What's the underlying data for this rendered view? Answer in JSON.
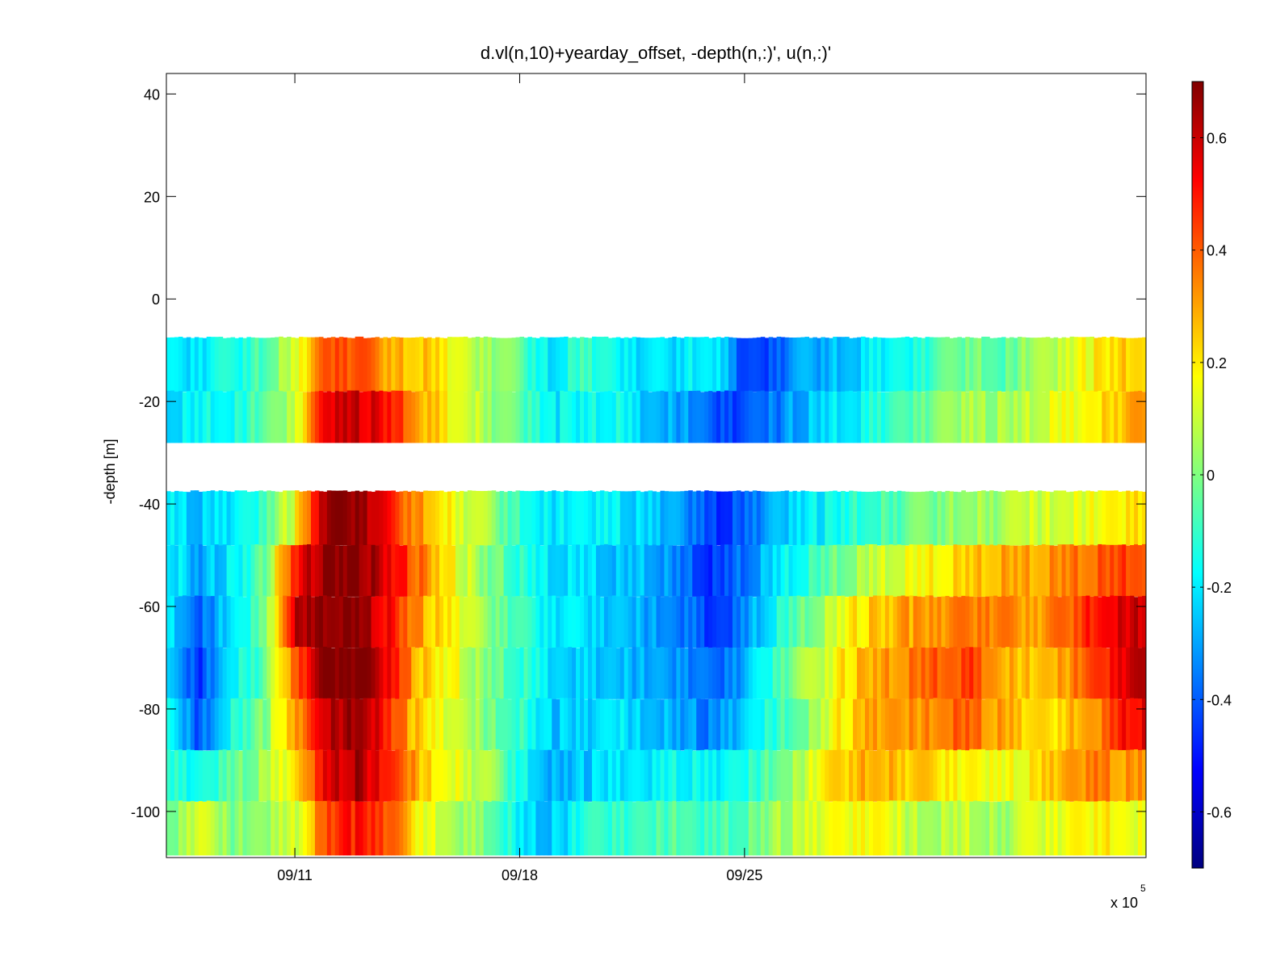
{
  "chart_data": {
    "type": "heatmap",
    "title": "d.vl(n,10)+yearday_offset, -depth(n,:)', u(n,:)'",
    "xlabel": "",
    "ylabel": "-depth [m]",
    "x_range_days": [
      0,
      30.5
    ],
    "x_tick_labels": [
      "09/11",
      "09/18",
      "09/25"
    ],
    "x_tick_days": [
      4,
      11,
      18
    ],
    "x_multiplier": "x 10",
    "x_multiplier_exponent": "5",
    "ylim": [
      -109,
      44
    ],
    "y_ticks": [
      40,
      20,
      0,
      -20,
      -40,
      -60,
      -80,
      -100
    ],
    "colormap": "jet",
    "clim": [
      -0.7,
      0.7
    ],
    "colorbar_ticks": [
      0.6,
      0.4,
      0.2,
      0,
      -0.2,
      -0.4,
      -0.6
    ],
    "grid": false,
    "depth_bins": [
      {
        "top": -7.5,
        "bottom": -18
      },
      {
        "top": -18,
        "bottom": -28
      },
      {
        "top": -37.5,
        "bottom": -48
      },
      {
        "top": -48,
        "bottom": -58
      },
      {
        "top": -58,
        "bottom": -68
      },
      {
        "top": -68,
        "bottom": -78
      },
      {
        "top": -78,
        "bottom": -88
      },
      {
        "top": -88,
        "bottom": -98
      },
      {
        "top": -98,
        "bottom": -108.5
      }
    ],
    "day_knots": [
      0,
      1,
      2,
      3,
      4,
      5,
      6,
      7,
      8,
      9,
      10,
      11,
      12,
      13,
      14,
      15,
      16,
      17,
      18,
      19,
      20,
      21,
      22,
      23,
      24,
      25,
      26,
      27,
      28,
      29,
      30,
      30.5
    ],
    "u_values_by_bin": [
      [
        -0.18,
        -0.2,
        -0.15,
        -0.05,
        0.1,
        0.45,
        0.4,
        0.3,
        0.25,
        0.15,
        0.05,
        -0.05,
        -0.2,
        -0.1,
        -0.15,
        -0.25,
        -0.2,
        -0.15,
        -0.45,
        -0.4,
        -0.3,
        -0.25,
        -0.2,
        -0.15,
        -0.1,
        0.0,
        -0.05,
        0.05,
        0.1,
        0.2,
        0.25,
        0.25
      ],
      [
        -0.2,
        -0.18,
        -0.15,
        -0.05,
        0.1,
        0.55,
        0.6,
        0.5,
        0.3,
        0.15,
        0.05,
        -0.05,
        -0.2,
        -0.15,
        -0.15,
        -0.25,
        -0.3,
        -0.4,
        -0.45,
        -0.35,
        -0.25,
        -0.2,
        -0.15,
        -0.05,
        0.0,
        0.05,
        0.05,
        0.1,
        0.15,
        0.2,
        0.3,
        0.3
      ],
      [
        -0.2,
        -0.25,
        -0.2,
        -0.1,
        0.15,
        0.7,
        0.7,
        0.45,
        0.3,
        0.15,
        0.05,
        -0.1,
        -0.2,
        -0.2,
        -0.2,
        -0.25,
        -0.3,
        -0.45,
        -0.4,
        -0.25,
        -0.2,
        -0.15,
        -0.1,
        -0.05,
        0.0,
        0.05,
        0.05,
        0.1,
        0.15,
        0.15,
        0.2,
        0.2
      ],
      [
        -0.15,
        -0.3,
        -0.2,
        -0.05,
        0.5,
        0.7,
        0.7,
        0.55,
        0.35,
        0.15,
        0.0,
        -0.1,
        -0.2,
        -0.2,
        -0.25,
        -0.25,
        -0.35,
        -0.45,
        -0.35,
        -0.2,
        -0.1,
        0.0,
        0.1,
        0.15,
        0.2,
        0.25,
        0.3,
        0.3,
        0.35,
        0.4,
        0.45,
        0.45
      ],
      [
        -0.2,
        -0.4,
        -0.2,
        -0.05,
        0.6,
        0.7,
        0.7,
        0.5,
        0.3,
        0.15,
        0.0,
        -0.1,
        -0.2,
        -0.2,
        -0.25,
        -0.3,
        -0.35,
        -0.45,
        -0.35,
        -0.15,
        0.0,
        0.15,
        0.25,
        0.3,
        0.3,
        0.35,
        0.35,
        0.3,
        0.4,
        0.5,
        0.6,
        0.6
      ],
      [
        -0.2,
        -0.45,
        -0.2,
        -0.05,
        0.4,
        0.7,
        0.7,
        0.5,
        0.25,
        0.15,
        0.0,
        -0.1,
        -0.2,
        -0.25,
        -0.25,
        -0.3,
        -0.3,
        -0.4,
        -0.3,
        -0.1,
        0.05,
        0.2,
        0.3,
        0.35,
        0.4,
        0.45,
        0.3,
        0.25,
        0.3,
        0.45,
        0.6,
        0.6
      ],
      [
        -0.15,
        -0.4,
        -0.15,
        0.0,
        0.3,
        0.6,
        0.7,
        0.45,
        0.2,
        0.1,
        0.0,
        -0.1,
        -0.25,
        -0.25,
        -0.2,
        -0.25,
        -0.3,
        -0.35,
        -0.25,
        -0.1,
        0.0,
        0.2,
        0.3,
        0.3,
        0.35,
        0.4,
        0.3,
        0.2,
        0.25,
        0.35,
        0.55,
        0.55
      ],
      [
        -0.1,
        -0.15,
        -0.05,
        0.05,
        0.2,
        0.55,
        0.65,
        0.45,
        0.25,
        0.15,
        0.05,
        -0.15,
        -0.3,
        -0.25,
        -0.2,
        -0.2,
        -0.15,
        -0.2,
        -0.15,
        0.0,
        0.1,
        0.25,
        0.3,
        0.25,
        0.2,
        0.2,
        0.15,
        0.2,
        0.3,
        0.35,
        0.3,
        0.3
      ],
      [
        -0.05,
        0.15,
        0.0,
        0.05,
        0.1,
        0.45,
        0.5,
        0.4,
        0.15,
        0.05,
        0.0,
        -0.2,
        -0.25,
        -0.15,
        -0.1,
        -0.1,
        -0.05,
        -0.1,
        -0.05,
        0.05,
        0.1,
        0.15,
        0.2,
        0.1,
        0.05,
        0.1,
        0.05,
        0.1,
        0.15,
        0.2,
        0.15,
        0.15
      ]
    ]
  }
}
